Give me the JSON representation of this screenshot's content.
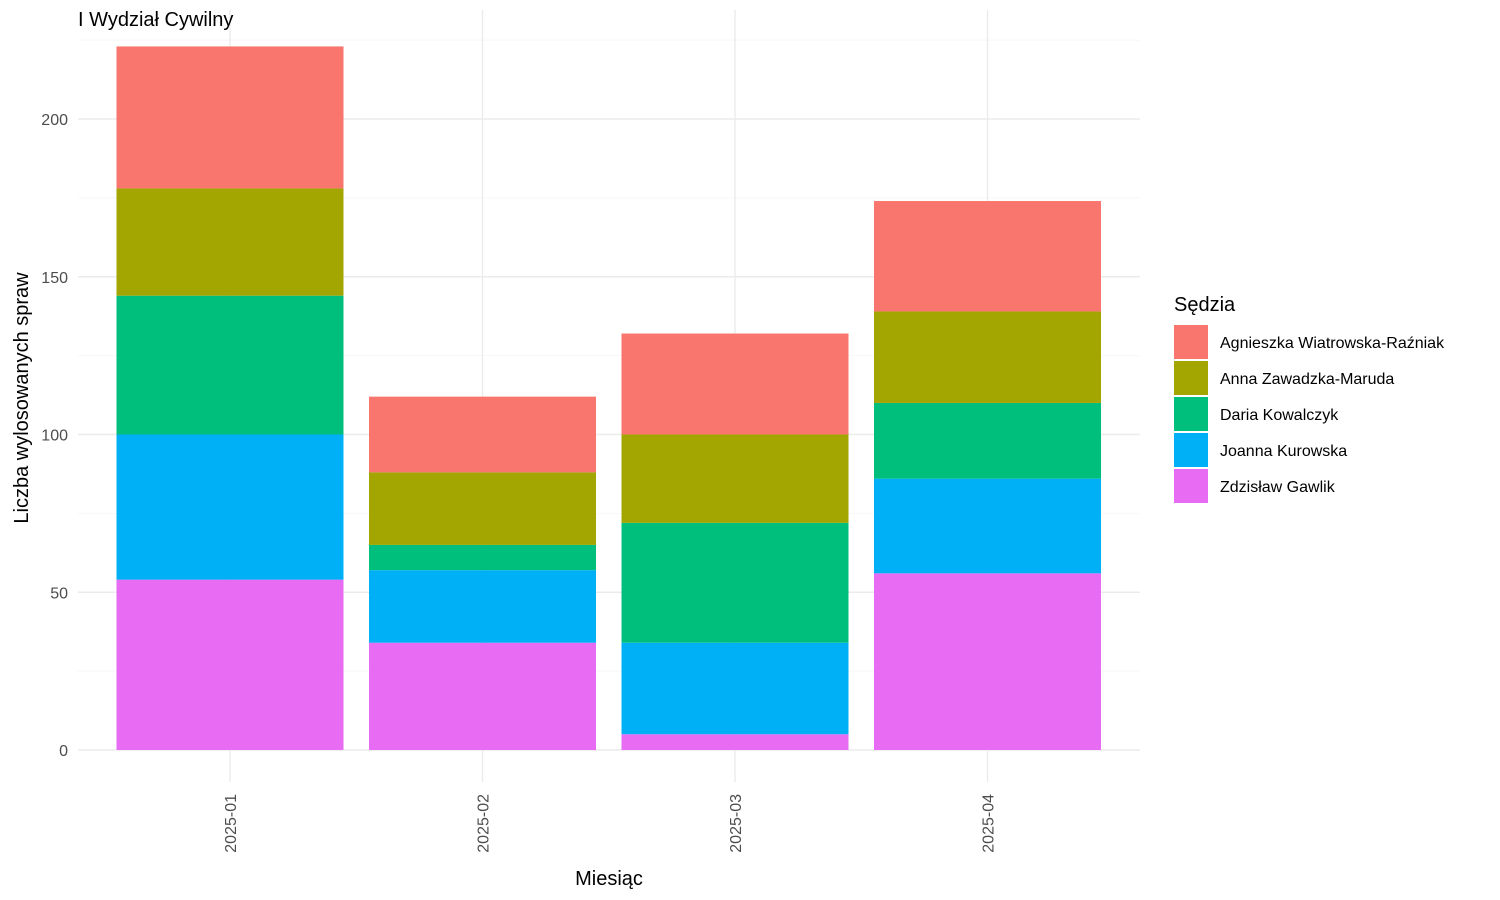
{
  "chart_data": {
    "type": "bar",
    "stacked": true,
    "title": "I Wydział Cywilny",
    "xlabel": "Miesiąc",
    "ylabel": "Liczba wylosowanych spraw",
    "categories": [
      "2025-01",
      "2025-02",
      "2025-03",
      "2025-04"
    ],
    "ylim": [
      0,
      225
    ],
    "yticks": [
      0,
      50,
      100,
      150,
      200
    ],
    "grid": true,
    "legend": {
      "title": "Sędzia",
      "position": "right"
    },
    "series": [
      {
        "name": "Zdzisław Gawlik",
        "color": "#E76BF3",
        "values": [
          54,
          34,
          5,
          56
        ]
      },
      {
        "name": "Joanna Kurowska",
        "color": "#00B0F6",
        "values": [
          46,
          23,
          29,
          30
        ]
      },
      {
        "name": "Daria Kowalczyk",
        "color": "#00BF7D",
        "values": [
          44,
          8,
          38,
          24
        ]
      },
      {
        "name": "Anna Zawadzka-Maruda",
        "color": "#A3A500",
        "values": [
          34,
          23,
          28,
          29
        ]
      },
      {
        "name": "Agnieszka Wiatrowska-Raźniak",
        "color": "#F8766D",
        "values": [
          45,
          24,
          32,
          35
        ]
      }
    ],
    "legend_order": [
      "Agnieszka Wiatrowska-Raźniak",
      "Anna Zawadzka-Maruda",
      "Daria Kowalczyk",
      "Joanna Kurowska",
      "Zdzisław Gawlik"
    ]
  }
}
